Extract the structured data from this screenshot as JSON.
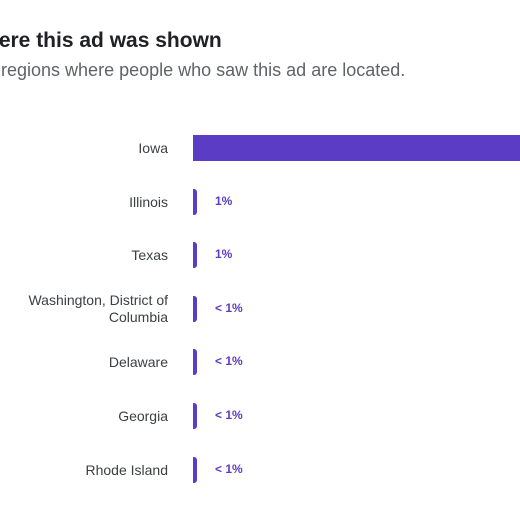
{
  "title": "here this ad was shown",
  "subtitle": "e regions where people who saw this ad are located.",
  "colors": {
    "bar": "#5b3cc4",
    "title": "#202124",
    "subtitle": "#5f6368"
  },
  "chart_data": {
    "type": "bar",
    "orientation": "horizontal",
    "categories": [
      "Iowa",
      "Illinois",
      "Texas",
      "Washington, District of Columbia",
      "Delaware",
      "Georgia",
      "Rhode Island"
    ],
    "value_labels": [
      "",
      "1%",
      "1%",
      "< 1%",
      "< 1%",
      "< 1%",
      "< 1%"
    ],
    "values": [
      97,
      1,
      1,
      0.5,
      0.5,
      0.5,
      0.5
    ],
    "title": "",
    "xlabel": "",
    "ylabel": ""
  }
}
